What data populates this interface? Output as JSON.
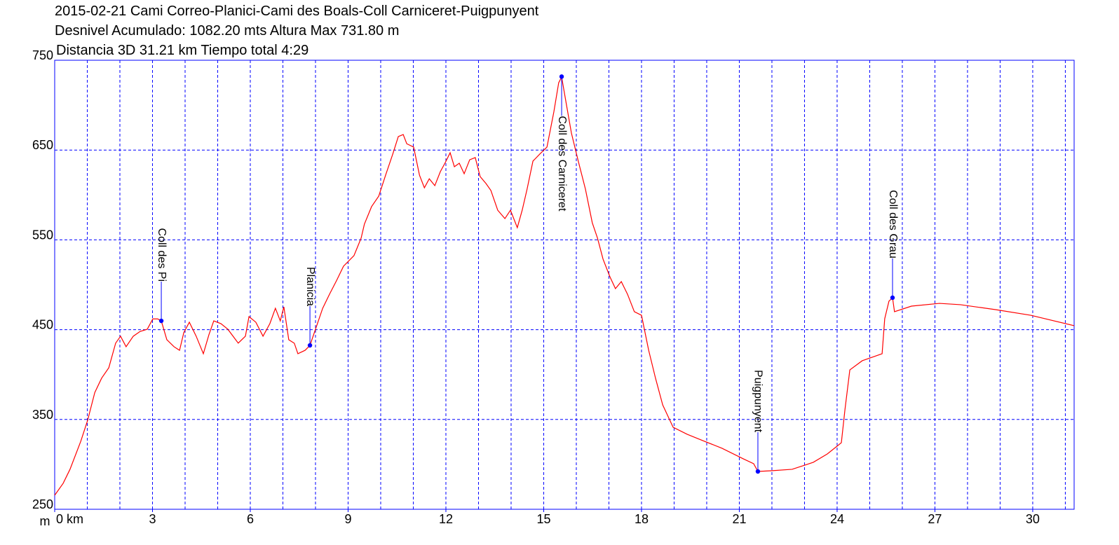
{
  "chart_data": {
    "type": "line",
    "title_lines": [
      "2015-02-21 Cami Correo-Planici-Cami des Boals-Coll Carniceret-Puigpunyent",
      "Desnivel Acumulado: 1082.20 mts  Altura Max 731.80 m",
      "Distancia 3D 31.21 km  Tiempo total 4:29"
    ],
    "y_unit": "m",
    "color": "#ff0000",
    "grid_color": "#0000ff",
    "grid": true,
    "xlim": [
      0,
      31.27
    ],
    "ylim": [
      250,
      750
    ],
    "xticks": [
      {
        "value": 0,
        "label": "0 km"
      },
      3,
      6,
      9,
      12,
      15,
      18,
      21,
      24,
      27,
      30
    ],
    "xgrid": [
      1,
      2,
      3,
      4,
      5,
      6,
      7,
      8,
      9,
      10,
      11,
      12,
      13,
      14,
      15,
      16,
      17,
      18,
      19,
      20,
      21,
      22,
      23,
      24,
      25,
      26,
      27,
      28,
      29,
      30,
      31
    ],
    "yticks": [
      250,
      350,
      450,
      550,
      650,
      750
    ],
    "x": [
      0,
      0.26,
      0.47,
      0.8,
      1.01,
      1.23,
      1.44,
      1.66,
      1.87,
      2.02,
      2.19,
      2.41,
      2.62,
      2.84,
      3.01,
      3.16,
      3.27,
      3.44,
      3.66,
      3.83,
      3.96,
      4.13,
      4.34,
      4.56,
      4.73,
      4.88,
      5.1,
      5.31,
      5.63,
      5.85,
      5.96,
      6.17,
      6.39,
      6.6,
      6.77,
      6.92,
      7.03,
      7.18,
      7.35,
      7.46,
      7.68,
      7.83,
      8.0,
      8.22,
      8.43,
      8.65,
      8.86,
      9.18,
      9.4,
      9.5,
      9.72,
      9.94,
      10.15,
      10.37,
      10.54,
      10.69,
      10.8,
      11.01,
      11.19,
      11.34,
      11.49,
      11.66,
      11.83,
      11.98,
      12.13,
      12.26,
      12.41,
      12.56,
      12.73,
      12.9,
      13.05,
      13.23,
      13.38,
      13.59,
      13.81,
      13.98,
      14.19,
      14.34,
      14.49,
      14.67,
      14.88,
      15.1,
      15.31,
      15.46,
      15.55,
      15.7,
      15.85,
      16.06,
      16.28,
      16.49,
      16.65,
      16.82,
      17.03,
      17.2,
      17.38,
      17.57,
      17.78,
      18.0,
      18.22,
      18.43,
      18.65,
      18.97,
      19.4,
      19.83,
      20.47,
      21.12,
      21.44,
      21.57,
      21.98,
      22.62,
      23.27,
      23.7,
      24.13,
      24.24,
      24.39,
      24.77,
      25.38,
      25.46,
      25.59,
      25.7,
      25.76,
      26.28,
      27.14,
      27.78,
      28.86,
      29.94,
      31.27
    ],
    "values": [
      265.6,
      278.9,
      294.5,
      325.7,
      349,
      380,
      396,
      407.6,
      435,
      442.7,
      431,
      442.7,
      448,
      450.5,
      462,
      462,
      459.8,
      438.8,
      431,
      427,
      446.7,
      458.3,
      442.7,
      423.2,
      444.3,
      459.8,
      456.7,
      450.5,
      435,
      442.7,
      464.5,
      458.3,
      442.7,
      456.7,
      473.8,
      459.8,
      475.4,
      438.8,
      434.9,
      423.2,
      427,
      432.5,
      450.5,
      473.8,
      489.5,
      505,
      520.7,
      532.4,
      552,
      567.5,
      587,
      598.7,
      622,
      645.5,
      665,
      667.3,
      657,
      653.3,
      622,
      608,
      618,
      610.4,
      626,
      636,
      647,
      631.4,
      635.3,
      623.6,
      639.2,
      641.6,
      620.5,
      612.7,
      605,
      583,
      573.7,
      583,
      563.6,
      583,
      606.5,
      637.7,
      645.5,
      653.3,
      692.3,
      725,
      731.3,
      700,
      668.9,
      637.7,
      606.5,
      569,
      551.9,
      528.5,
      509,
      495.7,
      503.5,
      489.5,
      470,
      466,
      427,
      395.9,
      366.2,
      341.3,
      333.5,
      327.2,
      317.9,
      306.2,
      300.7,
      292.1,
      292.9,
      294.5,
      302.3,
      311.6,
      324.1,
      360.8,
      405.2,
      415.4,
      423.2,
      462.2,
      481.7,
      485.6,
      470,
      476.2,
      479.3,
      477.8,
      472.3,
      466,
      454.4
    ],
    "waypoint_color": "#0000ff",
    "annotations": [
      {
        "label": "Coll des Pi",
        "x": 3.27,
        "y": 459.8
      },
      {
        "label": "Planicia",
        "x": 7.83,
        "y": 432.5
      },
      {
        "label": "Coll des Carniceret",
        "x": 15.55,
        "y": 731.8
      },
      {
        "label": "Puigpunyent",
        "x": 21.57,
        "y": 292.1
      },
      {
        "label": "Coll des Grau",
        "x": 25.7,
        "y": 485.6
      }
    ]
  }
}
